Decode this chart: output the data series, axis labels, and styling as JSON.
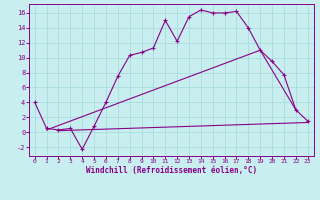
{
  "xlabel": "Windchill (Refroidissement éolien,°C)",
  "bg_color": "#c8eef0",
  "grid_color": "#aadddd",
  "line_color": "#880088",
  "xlim": [
    -0.5,
    23.5
  ],
  "ylim": [
    -3.2,
    17.2
  ],
  "xticks": [
    0,
    1,
    2,
    3,
    4,
    5,
    6,
    7,
    8,
    9,
    10,
    11,
    12,
    13,
    14,
    15,
    16,
    17,
    18,
    19,
    20,
    21,
    22,
    23
  ],
  "yticks": [
    -2,
    0,
    2,
    4,
    6,
    8,
    10,
    12,
    14,
    16
  ],
  "line1_x": [
    0,
    1,
    2,
    3,
    4,
    5,
    6,
    7,
    8,
    9,
    10,
    11,
    12,
    13,
    14,
    15,
    16,
    17,
    18,
    19,
    20,
    21,
    22,
    23
  ],
  "line1_y": [
    4.0,
    0.5,
    0.3,
    0.5,
    -2.3,
    0.8,
    4.0,
    7.5,
    10.3,
    10.7,
    11.3,
    15.0,
    12.2,
    15.5,
    16.4,
    16.0,
    16.0,
    16.2,
    14.0,
    11.0,
    9.5,
    7.7,
    3.0,
    1.5
  ],
  "line2_x": [
    1,
    19,
    22
  ],
  "line2_y": [
    0.3,
    11.0,
    3.0
  ],
  "line3_x": [
    2,
    23
  ],
  "line3_y": [
    0.2,
    1.3
  ],
  "marker": "+"
}
